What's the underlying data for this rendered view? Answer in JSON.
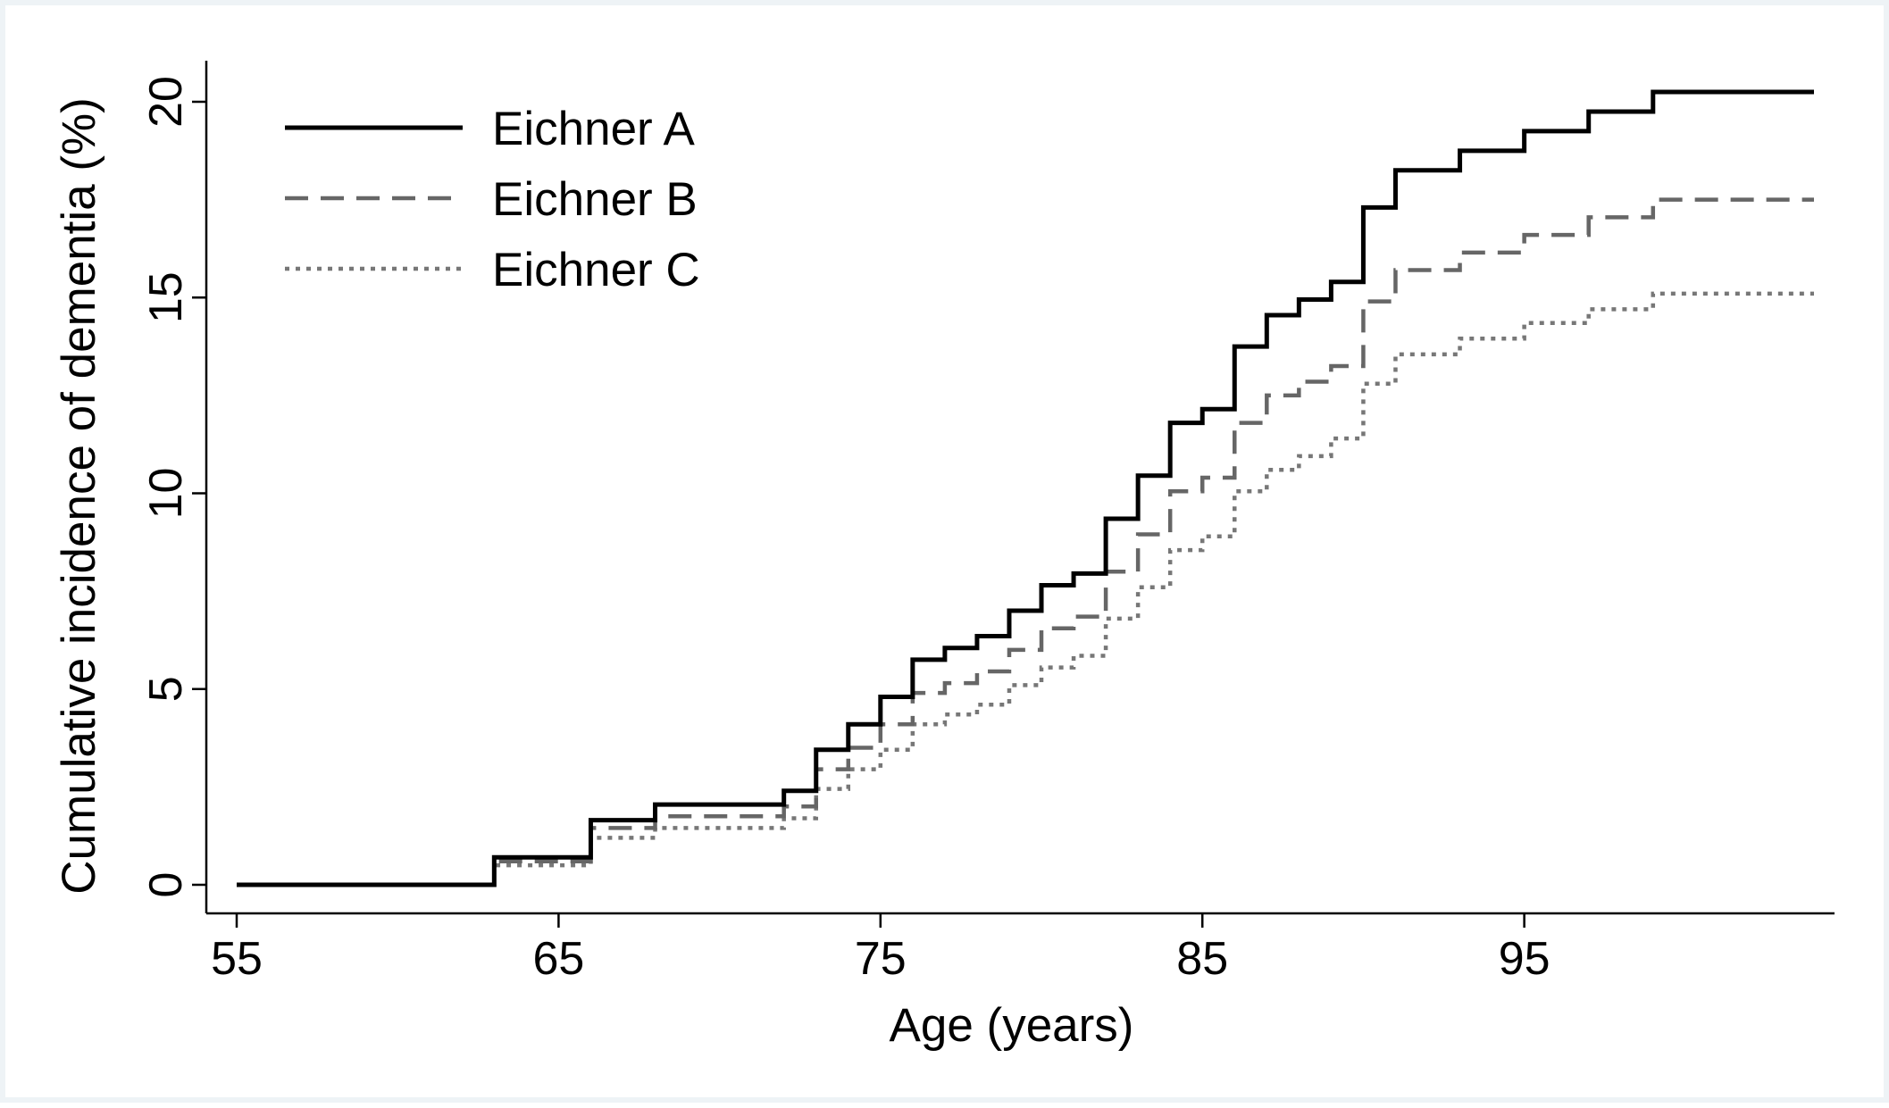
{
  "chart_data": {
    "type": "line",
    "xlabel": "Age (years)",
    "ylabel": "Cumulative incidence of dementia (%)",
    "xlim": [
      55,
      104
    ],
    "ylim": [
      0,
      20
    ],
    "xticks": [
      55,
      65,
      75,
      85,
      95
    ],
    "yticks": [
      0,
      5,
      10,
      15,
      20
    ],
    "grid": false,
    "legend_position": "top-left",
    "series": [
      {
        "name": "Eichner A",
        "style": "solid",
        "color": "#000000",
        "steps": [
          [
            55,
            0
          ],
          [
            63,
            0.7
          ],
          [
            66,
            1.65
          ],
          [
            68,
            2.05
          ],
          [
            72,
            2.4
          ],
          [
            73,
            3.45
          ],
          [
            74,
            4.1
          ],
          [
            75,
            4.8
          ],
          [
            76,
            5.75
          ],
          [
            77,
            6.05
          ],
          [
            78,
            6.35
          ],
          [
            79,
            7.0
          ],
          [
            80,
            7.65
          ],
          [
            81,
            7.95
          ],
          [
            82,
            9.35
          ],
          [
            83,
            10.45
          ],
          [
            84,
            11.8
          ],
          [
            85,
            12.15
          ],
          [
            86,
            13.75
          ],
          [
            87,
            14.55
          ],
          [
            88,
            14.95
          ],
          [
            89,
            15.4
          ],
          [
            90,
            17.3
          ],
          [
            91,
            18.25
          ],
          [
            93,
            18.75
          ],
          [
            95,
            19.25
          ],
          [
            97,
            19.75
          ],
          [
            99,
            20.25
          ],
          [
            104,
            20.25
          ]
        ]
      },
      {
        "name": "Eichner B",
        "style": "dashed",
        "color": "#666666",
        "steps": [
          [
            55,
            0
          ],
          [
            63,
            0.6
          ],
          [
            66,
            1.45
          ],
          [
            68,
            1.75
          ],
          [
            72,
            2.0
          ],
          [
            73,
            2.95
          ],
          [
            74,
            3.5
          ],
          [
            75,
            4.1
          ],
          [
            76,
            4.9
          ],
          [
            77,
            5.15
          ],
          [
            78,
            5.45
          ],
          [
            79,
            6.0
          ],
          [
            80,
            6.55
          ],
          [
            81,
            6.85
          ],
          [
            82,
            8.0
          ],
          [
            83,
            8.95
          ],
          [
            84,
            10.05
          ],
          [
            85,
            10.4
          ],
          [
            86,
            11.8
          ],
          [
            87,
            12.5
          ],
          [
            88,
            12.85
          ],
          [
            89,
            13.25
          ],
          [
            90,
            14.9
          ],
          [
            91,
            15.7
          ],
          [
            93,
            16.15
          ],
          [
            95,
            16.6
          ],
          [
            97,
            17.05
          ],
          [
            99,
            17.5
          ],
          [
            104,
            17.5
          ]
        ]
      },
      {
        "name": "Eichner C",
        "style": "dotted",
        "color": "#777777",
        "steps": [
          [
            55,
            0
          ],
          [
            63,
            0.5
          ],
          [
            66,
            1.2
          ],
          [
            68,
            1.45
          ],
          [
            72,
            1.7
          ],
          [
            73,
            2.45
          ],
          [
            74,
            2.95
          ],
          [
            75,
            3.45
          ],
          [
            76,
            4.1
          ],
          [
            77,
            4.35
          ],
          [
            78,
            4.6
          ],
          [
            79,
            5.1
          ],
          [
            80,
            5.55
          ],
          [
            81,
            5.85
          ],
          [
            82,
            6.8
          ],
          [
            83,
            7.6
          ],
          [
            84,
            8.55
          ],
          [
            85,
            8.9
          ],
          [
            86,
            10.05
          ],
          [
            87,
            10.6
          ],
          [
            88,
            10.95
          ],
          [
            89,
            11.4
          ],
          [
            90,
            12.8
          ],
          [
            91,
            13.55
          ],
          [
            93,
            13.95
          ],
          [
            95,
            14.35
          ],
          [
            97,
            14.7
          ],
          [
            99,
            15.1
          ],
          [
            104,
            15.1
          ]
        ]
      }
    ]
  }
}
